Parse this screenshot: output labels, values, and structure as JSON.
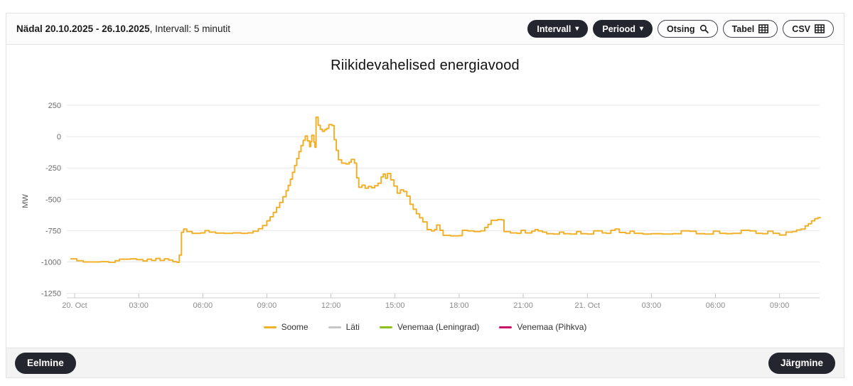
{
  "header": {
    "period_label": "Nädal 20.10.2025 - 26.10.2025",
    "interval_label": ", Intervall: 5 minutit",
    "buttons": {
      "interval": "Intervall",
      "period": "Periood",
      "search": "Otsing",
      "table": "Tabel",
      "csv": "CSV"
    },
    "icons": {
      "interval_caret": "triangle-down",
      "period_caret": "triangle-down",
      "search": "magnifier",
      "table": "grid",
      "csv": "grid"
    }
  },
  "footer": {
    "prev_label": "Eelmine",
    "next_label": "Järgmine"
  },
  "chart_data": {
    "type": "line",
    "step": true,
    "title": "Riikidevahelised energiavood",
    "xlabel": "",
    "ylabel": "MW",
    "ylim": [
      -1250,
      250
    ],
    "y_ticks": [
      250,
      0,
      -250,
      -500,
      -750,
      -1000,
      -1250
    ],
    "x_tick_hours": [
      0,
      3,
      6,
      9,
      12,
      15,
      18,
      21,
      24,
      27,
      30,
      33
    ],
    "x_tick_labels": [
      "20. Oct",
      "03:00",
      "06:00",
      "09:00",
      "12:00",
      "15:00",
      "18:00",
      "21:00",
      "21. Oct",
      "03:00",
      "06:00",
      "09:00"
    ],
    "x_range_hours": [
      -0.37,
      34.9
    ],
    "grid": "horizontal",
    "legend_position": "bottom",
    "legend": [
      {
        "name": "Soome",
        "color": "#f0b02a"
      },
      {
        "name": "Läti",
        "color": "#c6c6c6"
      },
      {
        "name": "Venemaa (Leningrad)",
        "color": "#8cbf1f"
      },
      {
        "name": "Venemaa (Pihkva)",
        "color": "#ce0f69"
      }
    ],
    "series": [
      {
        "name": "Soome",
        "color": "#f0b02a",
        "unit": "MW",
        "points": [
          [
            -0.2,
            -975
          ],
          [
            0.1,
            -990
          ],
          [
            0.4,
            -1000
          ],
          [
            1.2,
            -998
          ],
          [
            1.6,
            -1003
          ],
          [
            1.9,
            -990
          ],
          [
            2.1,
            -978
          ],
          [
            2.6,
            -975
          ],
          [
            2.9,
            -982
          ],
          [
            3.2,
            -992
          ],
          [
            3.4,
            -978
          ],
          [
            3.6,
            -988
          ],
          [
            3.8,
            -972
          ],
          [
            4.0,
            -988
          ],
          [
            4.2,
            -975
          ],
          [
            4.4,
            -985
          ],
          [
            4.6,
            -998
          ],
          [
            4.8,
            -1003
          ],
          [
            4.9,
            -945
          ],
          [
            5.0,
            -763
          ],
          [
            5.1,
            -738
          ],
          [
            5.25,
            -758
          ],
          [
            5.5,
            -772
          ],
          [
            5.9,
            -768
          ],
          [
            6.1,
            -750
          ],
          [
            6.3,
            -762
          ],
          [
            6.6,
            -770
          ],
          [
            7.0,
            -772
          ],
          [
            7.4,
            -768
          ],
          [
            7.8,
            -772
          ],
          [
            8.1,
            -768
          ],
          [
            8.35,
            -755
          ],
          [
            8.6,
            -735
          ],
          [
            8.8,
            -710
          ],
          [
            9.0,
            -672
          ],
          [
            9.15,
            -640
          ],
          [
            9.3,
            -605
          ],
          [
            9.45,
            -565
          ],
          [
            9.6,
            -525
          ],
          [
            9.75,
            -480
          ],
          [
            9.9,
            -432
          ],
          [
            10.0,
            -390
          ],
          [
            10.1,
            -340
          ],
          [
            10.2,
            -285
          ],
          [
            10.3,
            -230
          ],
          [
            10.4,
            -175
          ],
          [
            10.5,
            -120
          ],
          [
            10.6,
            -72
          ],
          [
            10.7,
            -30
          ],
          [
            10.8,
            5
          ],
          [
            10.9,
            -35
          ],
          [
            11.0,
            -80
          ],
          [
            11.05,
            -40
          ],
          [
            11.1,
            10
          ],
          [
            11.2,
            -45
          ],
          [
            11.25,
            -85
          ],
          [
            11.3,
            155
          ],
          [
            11.4,
            90
          ],
          [
            11.5,
            58
          ],
          [
            11.6,
            42
          ],
          [
            11.7,
            55
          ],
          [
            11.8,
            65
          ],
          [
            11.9,
            95
          ],
          [
            12.05,
            88
          ],
          [
            12.15,
            -25
          ],
          [
            12.25,
            -110
          ],
          [
            12.35,
            -185
          ],
          [
            12.5,
            -212
          ],
          [
            12.7,
            -218
          ],
          [
            12.85,
            -205
          ],
          [
            12.95,
            -182
          ],
          [
            13.1,
            -212
          ],
          [
            13.2,
            -330
          ],
          [
            13.3,
            -405
          ],
          [
            13.45,
            -388
          ],
          [
            13.6,
            -412
          ],
          [
            13.75,
            -398
          ],
          [
            13.9,
            -408
          ],
          [
            14.05,
            -392
          ],
          [
            14.2,
            -372
          ],
          [
            14.35,
            -322
          ],
          [
            14.45,
            -298
          ],
          [
            14.55,
            -332
          ],
          [
            14.65,
            -295
          ],
          [
            14.8,
            -345
          ],
          [
            14.95,
            -395
          ],
          [
            15.1,
            -452
          ],
          [
            15.25,
            -425
          ],
          [
            15.4,
            -438
          ],
          [
            15.55,
            -475
          ],
          [
            15.7,
            -540
          ],
          [
            15.85,
            -580
          ],
          [
            16.0,
            -615
          ],
          [
            16.15,
            -648
          ],
          [
            16.3,
            -680
          ],
          [
            16.5,
            -742
          ],
          [
            16.7,
            -752
          ],
          [
            16.85,
            -742
          ],
          [
            16.95,
            -705
          ],
          [
            17.1,
            -748
          ],
          [
            17.25,
            -788
          ],
          [
            17.6,
            -792
          ],
          [
            18.0,
            -790
          ],
          [
            18.15,
            -748
          ],
          [
            18.4,
            -752
          ],
          [
            18.7,
            -758
          ],
          [
            19.0,
            -752
          ],
          [
            19.2,
            -725
          ],
          [
            19.35,
            -700
          ],
          [
            19.5,
            -668
          ],
          [
            19.8,
            -662
          ],
          [
            20.0,
            -665
          ],
          [
            20.1,
            -758
          ],
          [
            20.4,
            -768
          ],
          [
            20.7,
            -772
          ],
          [
            20.9,
            -748
          ],
          [
            21.1,
            -768
          ],
          [
            21.4,
            -755
          ],
          [
            21.55,
            -742
          ],
          [
            21.7,
            -752
          ],
          [
            21.9,
            -762
          ],
          [
            22.1,
            -775
          ],
          [
            22.4,
            -778
          ],
          [
            22.7,
            -762
          ],
          [
            22.9,
            -775
          ],
          [
            23.2,
            -778
          ],
          [
            23.5,
            -758
          ],
          [
            23.7,
            -775
          ],
          [
            24.0,
            -778
          ],
          [
            24.3,
            -752
          ],
          [
            24.7,
            -768
          ],
          [
            24.9,
            -772
          ],
          [
            25.1,
            -748
          ],
          [
            25.3,
            -738
          ],
          [
            25.5,
            -765
          ],
          [
            25.8,
            -772
          ],
          [
            26.0,
            -755
          ],
          [
            26.2,
            -772
          ],
          [
            26.6,
            -778
          ],
          [
            27.0,
            -775
          ],
          [
            27.5,
            -778
          ],
          [
            28.0,
            -775
          ],
          [
            28.4,
            -752
          ],
          [
            28.8,
            -755
          ],
          [
            29.1,
            -775
          ],
          [
            29.5,
            -778
          ],
          [
            29.9,
            -755
          ],
          [
            30.2,
            -772
          ],
          [
            30.5,
            -775
          ],
          [
            30.8,
            -772
          ],
          [
            31.2,
            -748
          ],
          [
            31.6,
            -752
          ],
          [
            31.9,
            -772
          ],
          [
            32.2,
            -775
          ],
          [
            32.45,
            -755
          ],
          [
            32.7,
            -772
          ],
          [
            33.0,
            -785
          ],
          [
            33.3,
            -762
          ],
          [
            33.6,
            -758
          ],
          [
            33.8,
            -745
          ],
          [
            34.0,
            -738
          ],
          [
            34.2,
            -712
          ],
          [
            34.35,
            -695
          ],
          [
            34.5,
            -672
          ],
          [
            34.65,
            -655
          ],
          [
            34.8,
            -648
          ],
          [
            34.9,
            -640
          ]
        ]
      },
      {
        "name": "Läti",
        "color": "#c6c6c6",
        "unit": "MW",
        "points": []
      },
      {
        "name": "Venemaa (Leningrad)",
        "color": "#8cbf1f",
        "unit": "MW",
        "points": []
      },
      {
        "name": "Venemaa (Pihkva)",
        "color": "#ce0f69",
        "unit": "MW",
        "points": []
      }
    ]
  }
}
